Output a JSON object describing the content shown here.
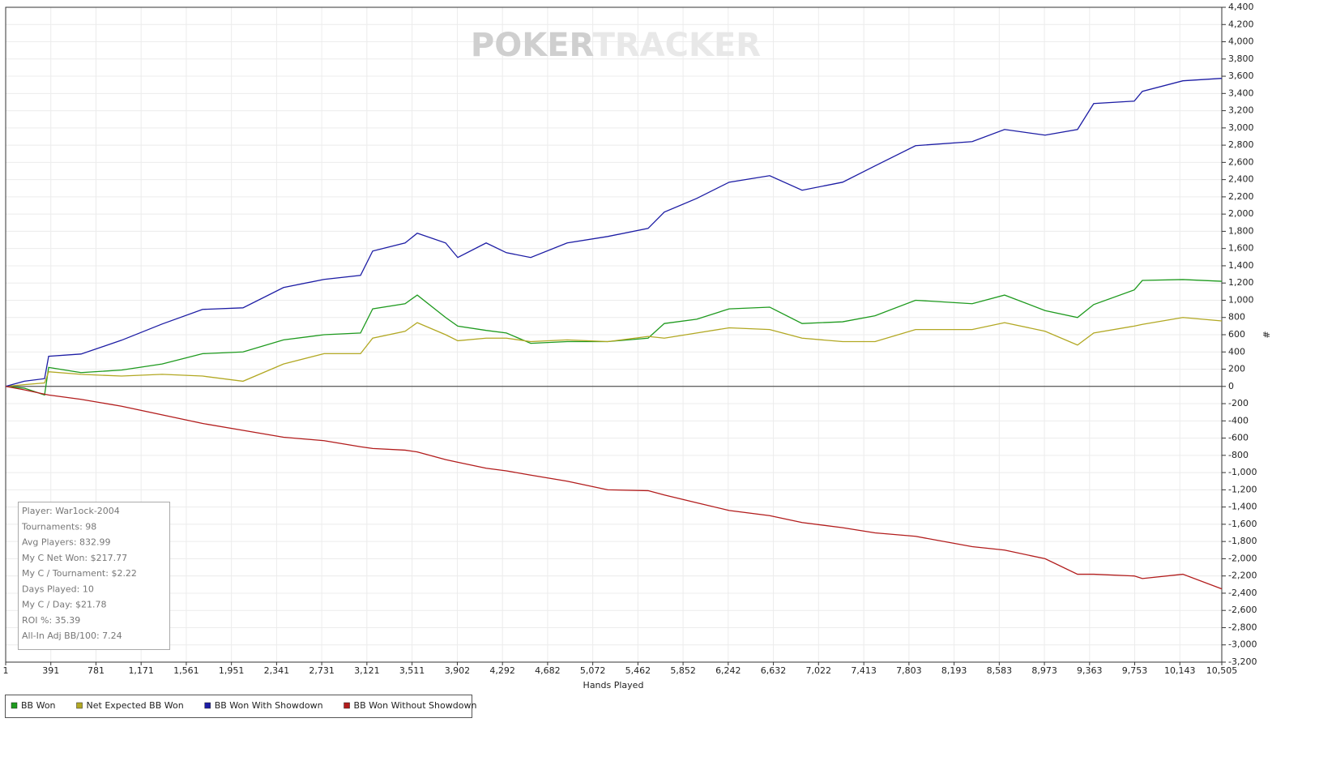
{
  "chart_data": {
    "type": "line",
    "watermark": [
      "POKER",
      "TRACKER"
    ],
    "x_label": "Hands Played",
    "y_label": "#",
    "x": [
      1,
      162,
      337,
      372,
      652,
      1002,
      1352,
      1702,
      2051,
      2401,
      2751,
      3066,
      3171,
      3451,
      3556,
      3801,
      3906,
      4151,
      4326,
      4536,
      4851,
      5201,
      5550,
      5690,
      5970,
      6250,
      6600,
      6880,
      7230,
      7510,
      7860,
      8349,
      8629,
      8979,
      9259,
      9399,
      9749,
      9819,
      10169,
      10505
    ],
    "series": [
      {
        "name": "BB Won",
        "color": "#1e9a1e",
        "values": [
          0,
          -20,
          -100,
          220,
          160,
          190,
          260,
          380,
          400,
          540,
          600,
          620,
          900,
          960,
          1060,
          800,
          700,
          650,
          620,
          500,
          520,
          520,
          560,
          730,
          780,
          900,
          920,
          730,
          750,
          820,
          1000,
          960,
          1060,
          880,
          800,
          950,
          1120,
          1230,
          1240,
          1220
        ]
      },
      {
        "name": "Net Expected BB Won",
        "color": "#b2a823",
        "values": [
          0,
          20,
          40,
          170,
          140,
          120,
          140,
          120,
          60,
          260,
          380,
          380,
          560,
          640,
          740,
          600,
          530,
          560,
          560,
          520,
          540,
          520,
          580,
          560,
          620,
          680,
          660,
          560,
          520,
          520,
          660,
          660,
          740,
          640,
          480,
          620,
          700,
          720,
          800,
          760
        ]
      },
      {
        "name": "BB Won With Showdown",
        "color": "#1c1ca4",
        "values": [
          0,
          60,
          90,
          350,
          376,
          536,
          724,
          894,
          912,
          1148,
          1242,
          1289,
          1571,
          1665,
          1778,
          1665,
          1496,
          1665,
          1552,
          1496,
          1665,
          1740,
          1834,
          2023,
          2182,
          2370,
          2446,
          2277,
          2370,
          2559,
          2794,
          2841,
          2982,
          2916,
          2982,
          3283,
          3311,
          3424,
          3547,
          3575
        ]
      },
      {
        "name": "BB Won Without Showdown",
        "color": "#b21c1c",
        "values": [
          0,
          -40,
          -90,
          -100,
          -150,
          -230,
          -330,
          -430,
          -510,
          -590,
          -630,
          -700,
          -720,
          -740,
          -760,
          -850,
          -880,
          -950,
          -980,
          -1030,
          -1100,
          -1200,
          -1210,
          -1260,
          -1350,
          -1440,
          -1500,
          -1580,
          -1640,
          -1700,
          -1740,
          -1860,
          -1900,
          -2000,
          -2180,
          -2180,
          -2200,
          -2230,
          -2180,
          -2350
        ]
      }
    ],
    "xlim": [
      1,
      10505
    ],
    "xticks": [
      1,
      391,
      781,
      {
        "value": 1171,
        "label": "1,171"
      },
      {
        "value": 1561,
        "label": "1,561"
      },
      {
        "value": 1951,
        "label": "1,951"
      },
      {
        "value": 2341,
        "label": "2,341"
      },
      {
        "value": 2731,
        "label": "2,731"
      },
      {
        "value": 3121,
        "label": "3,121"
      },
      {
        "value": 3511,
        "label": "3,511"
      },
      {
        "value": 3902,
        "label": "3,902"
      },
      {
        "value": 4292,
        "label": "4,292"
      },
      {
        "value": 4682,
        "label": "4,682"
      },
      {
        "value": 5072,
        "label": "5,072"
      },
      {
        "value": 5462,
        "label": "5,462"
      },
      {
        "value": 5852,
        "label": "5,852"
      },
      {
        "value": 6242,
        "label": "6,242"
      },
      {
        "value": 6632,
        "label": "6,632"
      },
      {
        "value": 7022,
        "label": "7,022"
      },
      {
        "value": 7413,
        "label": "7,413"
      },
      {
        "value": 7803,
        "label": "7,803"
      },
      {
        "value": 8193,
        "label": "8,193"
      },
      {
        "value": 8583,
        "label": "8,583"
      },
      {
        "value": 8973,
        "label": "8,973"
      },
      {
        "value": 9363,
        "label": "9,363"
      },
      {
        "value": 9753,
        "label": "9,753"
      },
      {
        "value": 10143,
        "label": "10,143"
      },
      {
        "value": 10505,
        "label": "10,505"
      }
    ],
    "ylim": [
      -3200,
      4400
    ],
    "yticks": [
      {
        "value": -3200,
        "label": "-3,200"
      },
      {
        "value": -3000,
        "label": "-3,000"
      },
      {
        "value": -2800,
        "label": "-2,800"
      },
      {
        "value": -2600,
        "label": "-2,600"
      },
      {
        "value": -2400,
        "label": "-2,400"
      },
      {
        "value": -2200,
        "label": "-2,200"
      },
      {
        "value": -2000,
        "label": "-2,000"
      },
      {
        "value": -1800,
        "label": "-1,800"
      },
      {
        "value": -1600,
        "label": "-1,600"
      },
      {
        "value": -1400,
        "label": "-1,400"
      },
      {
        "value": -1200,
        "label": "-1,200"
      },
      {
        "value": -1000,
        "label": "-1,000"
      },
      -800,
      -600,
      -400,
      -200,
      0,
      200,
      400,
      600,
      800,
      {
        "value": 1000,
        "label": "1,000"
      },
      {
        "value": 1200,
        "label": "1,200"
      },
      {
        "value": 1400,
        "label": "1,400"
      },
      {
        "value": 1600,
        "label": "1,600"
      },
      {
        "value": 1800,
        "label": "1,800"
      },
      {
        "value": 2000,
        "label": "2,000"
      },
      {
        "value": 2200,
        "label": "2,200"
      },
      {
        "value": 2400,
        "label": "2,400"
      },
      {
        "value": 2600,
        "label": "2,600"
      },
      {
        "value": 2800,
        "label": "2,800"
      },
      {
        "value": 3000,
        "label": "3,000"
      },
      {
        "value": 3200,
        "label": "3,200"
      },
      {
        "value": 3400,
        "label": "3,400"
      },
      {
        "value": 3600,
        "label": "3,600"
      },
      {
        "value": 3800,
        "label": "3,800"
      },
      {
        "value": 4000,
        "label": "4,000"
      },
      {
        "value": 4200,
        "label": "4,200"
      },
      {
        "value": 4400,
        "label": "4,400"
      }
    ],
    "grid": true,
    "legend": "bottom-left",
    "annotations": [
      "Player: War1ock-2004",
      "Tournaments: 98",
      "Avg Players: 832.99",
      "My C Net Won: $217.77",
      "My C / Tournament: $2.22",
      "Days Played: 10",
      "My C / Day: $21.78",
      "ROI %: 35.39",
      "All-In Adj BB/100: 7.24"
    ]
  }
}
